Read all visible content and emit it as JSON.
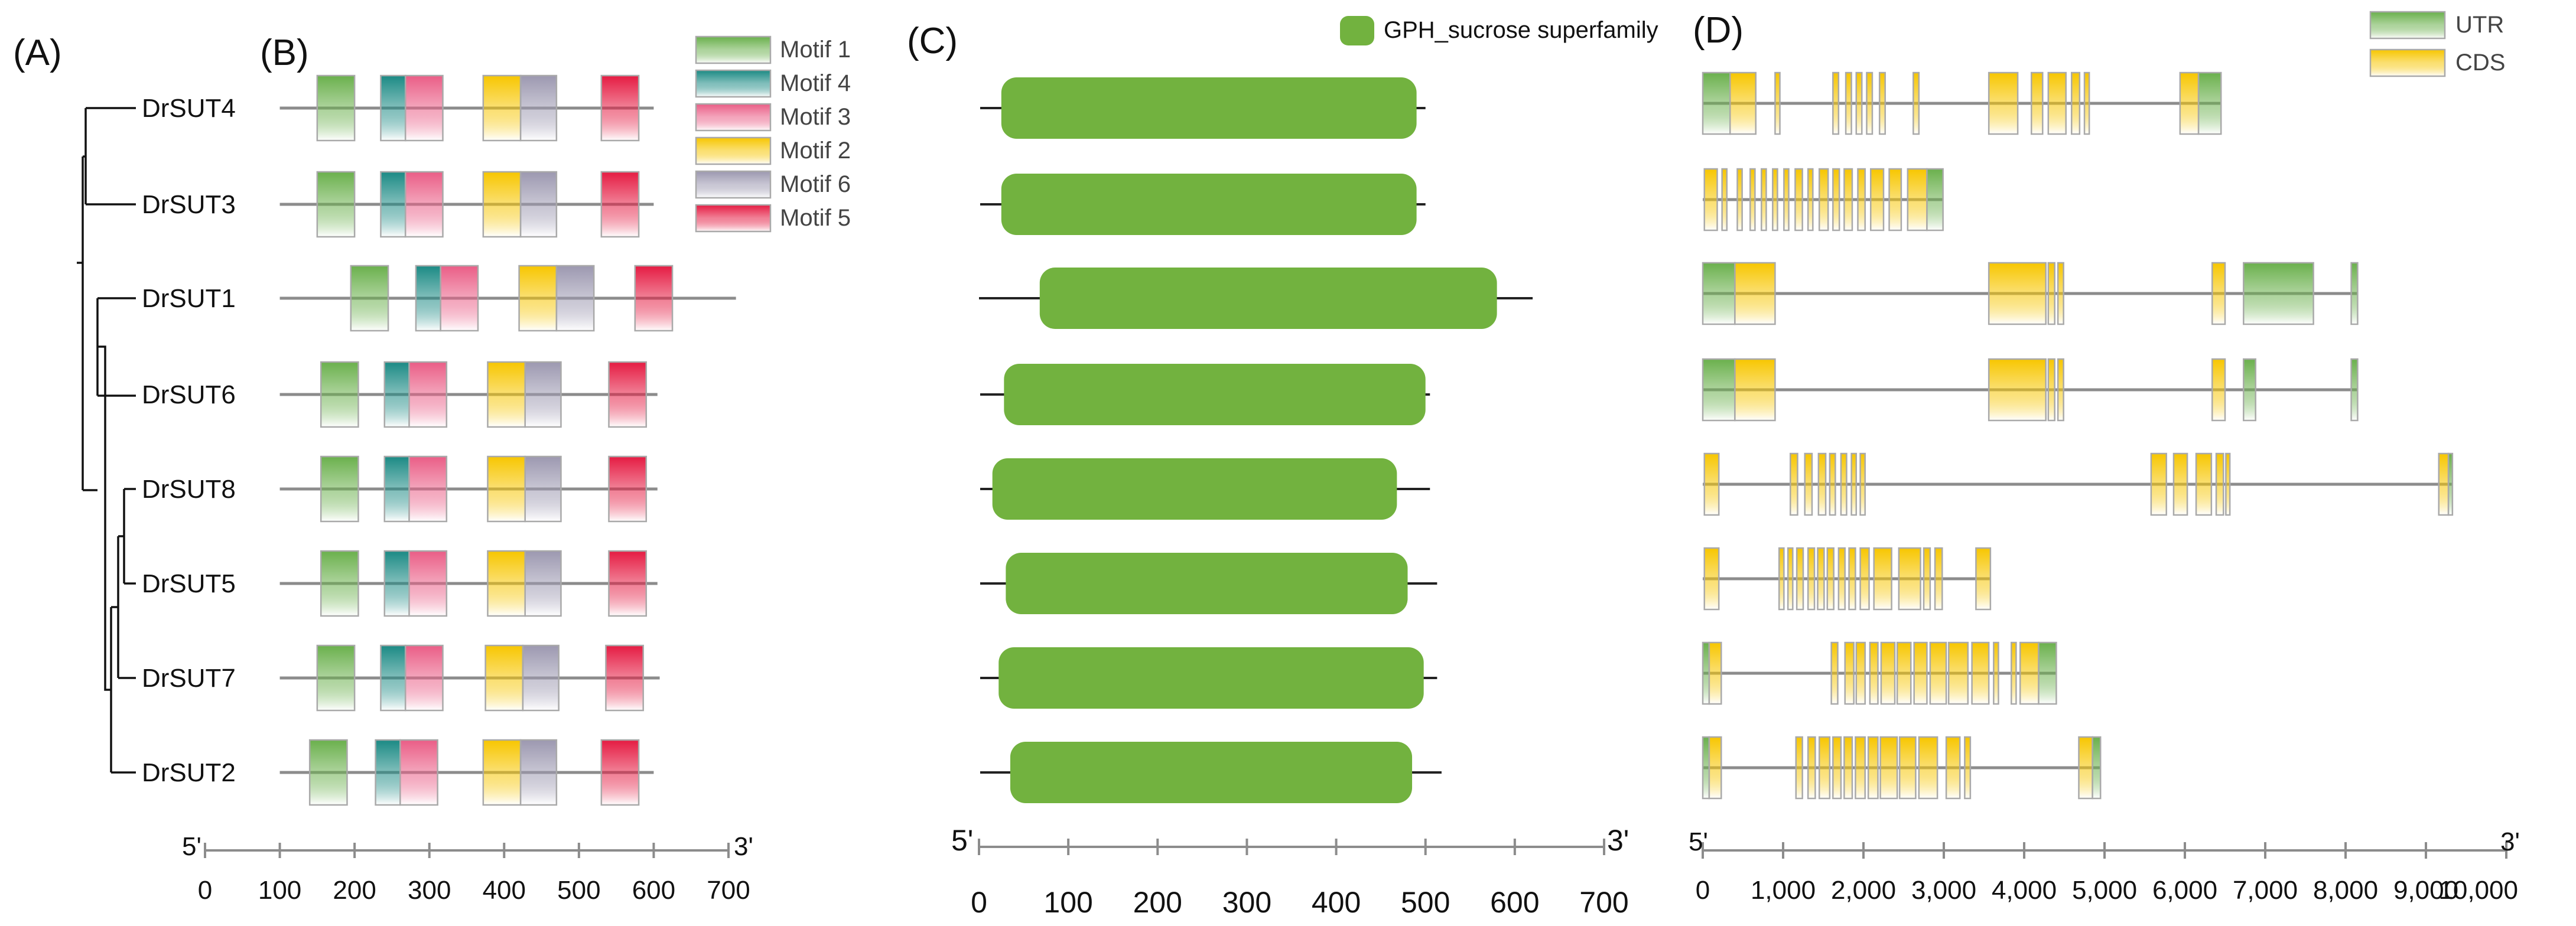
{
  "panels": {
    "a": "(A)",
    "b": "(B)",
    "c": "(C)",
    "d": "(D)"
  },
  "genes": [
    "DrSUT4",
    "DrSUT3",
    "DrSUT1",
    "DrSUT6",
    "DrSUT8",
    "DrSUT5",
    "DrSUT7",
    "DrSUT2"
  ],
  "motif_legend": [
    {
      "id": "m1",
      "label": "Motif 1"
    },
    {
      "id": "m4",
      "label": "Motif 4"
    },
    {
      "id": "m3",
      "label": "Motif 3"
    },
    {
      "id": "m2",
      "label": "Motif 2"
    },
    {
      "id": "m6",
      "label": "Motif 6"
    },
    {
      "id": "m5",
      "label": "Motif 5"
    }
  ],
  "colors": {
    "motif1": "#6ab04c",
    "motif4": "#1b8a84",
    "motif3": "#ea5d86",
    "motif2": "#f7c600",
    "motif6": "#9c98b0",
    "motif5": "#e51b42",
    "domain": "#72b23f",
    "utr": "#6ab04c",
    "cds": "#f7c600",
    "backbone": "#8c8c8c"
  },
  "domain_legend": "GPH_sucrose superfamily",
  "gene_structure_legend": {
    "utr": "UTR",
    "cds": "CDS"
  },
  "axis_b": {
    "start_label": "5'",
    "end_label": "3'",
    "ticks": [
      0,
      100,
      200,
      300,
      400,
      500,
      600,
      700
    ],
    "tick_labels": [
      "0",
      "100",
      "200",
      "300",
      "400",
      "500",
      "600",
      "700"
    ]
  },
  "axis_c": {
    "start_label": "5'",
    "end_label": "3'",
    "ticks": [
      0,
      100,
      200,
      300,
      400,
      500,
      600,
      700
    ],
    "tick_labels": [
      "0",
      "100",
      "200",
      "300",
      "400",
      "500",
      "600",
      "700"
    ]
  },
  "axis_d": {
    "start_label": "5'",
    "end_label": "3'",
    "ticks": [
      0,
      1000,
      2000,
      3000,
      4000,
      5000,
      6000,
      7000,
      8000,
      9000,
      10000
    ],
    "tick_labels": [
      "0",
      "1,000",
      "2,000",
      "3,000",
      "4,000",
      "5,000",
      "6,000",
      "7,000",
      "8,000",
      "9,000",
      "10,000"
    ]
  },
  "motifs": [
    {
      "gene": "DrSUT4",
      "length": 600,
      "motifs": [
        [
          "m1",
          150,
          200
        ],
        [
          "m4",
          235,
          268
        ],
        [
          "m3",
          268,
          318
        ],
        [
          "m2",
          372,
          422
        ],
        [
          "m6",
          422,
          470
        ],
        [
          "m5",
          530,
          580
        ]
      ]
    },
    {
      "gene": "DrSUT3",
      "length": 600,
      "motifs": [
        [
          "m1",
          150,
          200
        ],
        [
          "m4",
          235,
          268
        ],
        [
          "m3",
          268,
          318
        ],
        [
          "m2",
          372,
          422
        ],
        [
          "m6",
          422,
          470
        ],
        [
          "m5",
          530,
          580
        ]
      ]
    },
    {
      "gene": "DrSUT1",
      "length": 710,
      "motifs": [
        [
          "m1",
          195,
          245
        ],
        [
          "m4",
          282,
          315
        ],
        [
          "m3",
          315,
          365
        ],
        [
          "m2",
          420,
          470
        ],
        [
          "m6",
          470,
          520
        ],
        [
          "m5",
          575,
          625
        ]
      ]
    },
    {
      "gene": "DrSUT6",
      "length": 605,
      "motifs": [
        [
          "m1",
          155,
          205
        ],
        [
          "m4",
          240,
          273
        ],
        [
          "m3",
          273,
          323
        ],
        [
          "m2",
          378,
          428
        ],
        [
          "m6",
          428,
          476
        ],
        [
          "m5",
          540,
          590
        ]
      ]
    },
    {
      "gene": "DrSUT8",
      "length": 605,
      "motifs": [
        [
          "m1",
          155,
          205
        ],
        [
          "m4",
          240,
          273
        ],
        [
          "m3",
          273,
          323
        ],
        [
          "m2",
          378,
          428
        ],
        [
          "m6",
          428,
          476
        ],
        [
          "m5",
          540,
          590
        ]
      ]
    },
    {
      "gene": "DrSUT5",
      "length": 605,
      "motifs": [
        [
          "m1",
          155,
          205
        ],
        [
          "m4",
          240,
          273
        ],
        [
          "m3",
          273,
          323
        ],
        [
          "m2",
          378,
          428
        ],
        [
          "m6",
          428,
          476
        ],
        [
          "m5",
          540,
          590
        ]
      ]
    },
    {
      "gene": "DrSUT7",
      "length": 608,
      "motifs": [
        [
          "m1",
          150,
          200
        ],
        [
          "m4",
          235,
          268
        ],
        [
          "m3",
          268,
          318
        ],
        [
          "m2",
          375,
          425
        ],
        [
          "m6",
          425,
          473
        ],
        [
          "m5",
          536,
          586
        ]
      ]
    },
    {
      "gene": "DrSUT2",
      "length": 600,
      "motifs": [
        [
          "m1",
          140,
          190
        ],
        [
          "m4",
          228,
          261
        ],
        [
          "m3",
          261,
          311
        ],
        [
          "m2",
          372,
          422
        ],
        [
          "m6",
          422,
          470
        ],
        [
          "m5",
          530,
          580
        ]
      ]
    }
  ],
  "domains": [
    {
      "gene": "DrSUT4",
      "length": 500,
      "domain": [
        25,
        490
      ]
    },
    {
      "gene": "DrSUT3",
      "length": 500,
      "domain": [
        25,
        490
      ]
    },
    {
      "gene": "DrSUT1",
      "length": 620,
      "domain": [
        68,
        580
      ]
    },
    {
      "gene": "DrSUT6",
      "length": 505,
      "domain": [
        28,
        500
      ]
    },
    {
      "gene": "DrSUT8",
      "length": 505,
      "domain": [
        15,
        468
      ]
    },
    {
      "gene": "DrSUT5",
      "length": 513,
      "domain": [
        30,
        480
      ]
    },
    {
      "gene": "DrSUT7",
      "length": 513,
      "domain": [
        22,
        498
      ]
    },
    {
      "gene": "DrSUT2",
      "length": 518,
      "domain": [
        35,
        485
      ]
    }
  ],
  "structures": [
    {
      "gene": "DrSUT4",
      "length": 6450,
      "exons": [
        [
          "utr",
          0,
          340
        ],
        [
          "cds",
          340,
          660
        ],
        [
          "cds",
          900,
          960
        ],
        [
          "cds",
          1620,
          1690
        ],
        [
          "cds",
          1780,
          1850
        ],
        [
          "cds",
          1910,
          1980
        ],
        [
          "cds",
          2040,
          2110
        ],
        [
          "cds",
          2200,
          2270
        ],
        [
          "cds",
          2620,
          2690
        ],
        [
          "cds",
          3560,
          3920
        ],
        [
          "cds",
          4090,
          4230
        ],
        [
          "cds",
          4300,
          4520
        ],
        [
          "cds",
          4590,
          4690
        ],
        [
          "cds",
          4750,
          4810
        ],
        [
          "cds",
          5940,
          6170
        ],
        [
          "utr",
          6170,
          6450
        ]
      ]
    },
    {
      "gene": "DrSUT3",
      "length": 2990,
      "exons": [
        [
          "cds",
          20,
          180
        ],
        [
          "cds",
          240,
          300
        ],
        [
          "cds",
          430,
          490
        ],
        [
          "cds",
          590,
          650
        ],
        [
          "cds",
          730,
          790
        ],
        [
          "cds",
          870,
          930
        ],
        [
          "cds",
          1010,
          1070
        ],
        [
          "cds",
          1150,
          1240
        ],
        [
          "cds",
          1310,
          1370
        ],
        [
          "cds",
          1450,
          1560
        ],
        [
          "cds",
          1620,
          1700
        ],
        [
          "cds",
          1760,
          1860
        ],
        [
          "cds",
          1930,
          2020
        ],
        [
          "cds",
          2090,
          2250
        ],
        [
          "cds",
          2320,
          2470
        ],
        [
          "cds",
          2550,
          2790
        ],
        [
          "utr",
          2790,
          2990
        ]
      ]
    },
    {
      "gene": "DrSUT1",
      "length": 8150,
      "exons": [
        [
          "utr",
          0,
          400
        ],
        [
          "cds",
          400,
          900
        ],
        [
          "cds",
          3560,
          4270
        ],
        [
          "cds",
          4300,
          4380
        ],
        [
          "cds",
          4420,
          4490
        ],
        [
          "cds",
          6340,
          6500
        ],
        [
          "utr",
          6730,
          7600
        ],
        [
          "utr",
          8070,
          8150
        ]
      ]
    },
    {
      "gene": "DrSUT6",
      "length": 8150,
      "exons": [
        [
          "utr",
          0,
          400
        ],
        [
          "cds",
          400,
          900
        ],
        [
          "cds",
          3560,
          4270
        ],
        [
          "cds",
          4300,
          4380
        ],
        [
          "cds",
          4420,
          4490
        ],
        [
          "cds",
          6340,
          6500
        ],
        [
          "utr",
          6730,
          6880
        ],
        [
          "utr",
          8070,
          8150
        ]
      ]
    },
    {
      "gene": "DrSUT8",
      "length": 9330,
      "exons": [
        [
          "cds",
          20,
          200
        ],
        [
          "cds",
          1090,
          1180
        ],
        [
          "cds",
          1270,
          1360
        ],
        [
          "cds",
          1440,
          1530
        ],
        [
          "cds",
          1580,
          1650
        ],
        [
          "cds",
          1720,
          1790
        ],
        [
          "cds",
          1850,
          1910
        ],
        [
          "cds",
          1960,
          2020
        ],
        [
          "cds",
          5580,
          5770
        ],
        [
          "cds",
          5860,
          6030
        ],
        [
          "cds",
          6140,
          6330
        ],
        [
          "cds",
          6390,
          6480
        ],
        [
          "cds",
          6510,
          6560
        ],
        [
          "cds",
          9160,
          9280
        ],
        [
          "utr",
          9280,
          9330
        ]
      ]
    },
    {
      "gene": "DrSUT5",
      "length": 3580,
      "exons": [
        [
          "cds",
          20,
          200
        ],
        [
          "cds",
          950,
          1010
        ],
        [
          "cds",
          1060,
          1120
        ],
        [
          "cds",
          1170,
          1250
        ],
        [
          "cds",
          1310,
          1390
        ],
        [
          "cds",
          1430,
          1510
        ],
        [
          "cds",
          1550,
          1630
        ],
        [
          "cds",
          1690,
          1770
        ],
        [
          "cds",
          1820,
          1900
        ],
        [
          "cds",
          1960,
          2070
        ],
        [
          "cds",
          2130,
          2350
        ],
        [
          "cds",
          2440,
          2710
        ],
        [
          "cds",
          2750,
          2830
        ],
        [
          "cds",
          2890,
          2980
        ],
        [
          "cds",
          3400,
          3580
        ]
      ]
    },
    {
      "gene": "DrSUT7",
      "length": 4400,
      "exons": [
        [
          "utr",
          0,
          80
        ],
        [
          "cds",
          80,
          230
        ],
        [
          "cds",
          1600,
          1680
        ],
        [
          "cds",
          1770,
          1880
        ],
        [
          "cds",
          1910,
          2020
        ],
        [
          "cds",
          2080,
          2180
        ],
        [
          "cds",
          2220,
          2390
        ],
        [
          "cds",
          2420,
          2590
        ],
        [
          "cds",
          2630,
          2790
        ],
        [
          "cds",
          2830,
          3030
        ],
        [
          "cds",
          3060,
          3300
        ],
        [
          "cds",
          3350,
          3560
        ],
        [
          "cds",
          3620,
          3680
        ],
        [
          "cds",
          3840,
          3900
        ],
        [
          "cds",
          3950,
          4180
        ],
        [
          "utr",
          4180,
          4400
        ]
      ]
    },
    {
      "gene": "DrSUT2",
      "length": 4950,
      "exons": [
        [
          "utr",
          0,
          80
        ],
        [
          "cds",
          80,
          230
        ],
        [
          "cds",
          1160,
          1240
        ],
        [
          "cds",
          1310,
          1400
        ],
        [
          "cds",
          1450,
          1580
        ],
        [
          "cds",
          1620,
          1720
        ],
        [
          "cds",
          1760,
          1860
        ],
        [
          "cds",
          1900,
          2020
        ],
        [
          "cds",
          2060,
          2180
        ],
        [
          "cds",
          2210,
          2420
        ],
        [
          "cds",
          2450,
          2650
        ],
        [
          "cds",
          2690,
          2920
        ],
        [
          "cds",
          3030,
          3200
        ],
        [
          "cds",
          3260,
          3330
        ],
        [
          "cds",
          4680,
          4850
        ],
        [
          "utr",
          4850,
          4950
        ]
      ]
    }
  ]
}
